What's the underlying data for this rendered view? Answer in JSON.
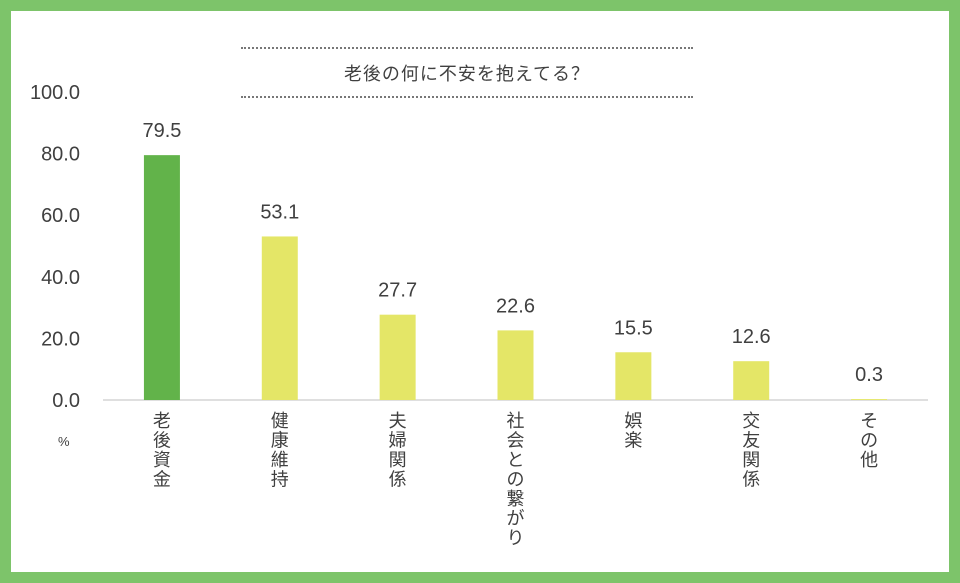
{
  "chart_data": {
    "type": "bar",
    "title": "老後の何に不安を抱えてる？",
    "unit": "%",
    "categories": [
      "老後資金",
      "健康維持",
      "夫婦関係",
      "社会との繋がり",
      "娯楽",
      "交友関係",
      "その他"
    ],
    "values": [
      79.5,
      53.1,
      27.7,
      22.6,
      15.5,
      12.6,
      0.3
    ],
    "value_labels": [
      "79.5",
      "53.1",
      "27.7",
      "22.6",
      "15.5",
      "12.6",
      "0.3"
    ],
    "y_ticks": [
      "0.0",
      "20.0",
      "40.0",
      "60.0",
      "80.0",
      "100.0"
    ],
    "ylim": [
      0,
      100
    ],
    "grid": false,
    "colors": {
      "highlight": "#62b34a",
      "default": "#e4e667",
      "frame": "#7dc46a",
      "text": "#404040",
      "axis": "#bfbfbf"
    }
  }
}
